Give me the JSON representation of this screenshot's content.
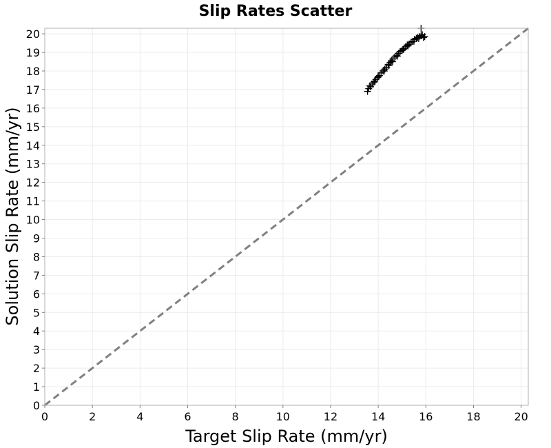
{
  "chart_data": {
    "type": "scatter",
    "title": "Slip Rates Scatter",
    "xlabel": "Target Slip Rate (mm/yr)",
    "ylabel": "Solution Slip Rate (mm/yr)",
    "xlim": [
      0,
      20.3
    ],
    "ylim": [
      0,
      20.3
    ],
    "xticks": [
      0,
      2,
      4,
      6,
      8,
      10,
      12,
      14,
      16,
      18,
      20
    ],
    "yticks": [
      0,
      1,
      2,
      3,
      4,
      5,
      6,
      7,
      8,
      9,
      10,
      11,
      12,
      13,
      14,
      15,
      16,
      17,
      18,
      19,
      20
    ],
    "grid": true,
    "marker": "plus",
    "marker_color": "#000000",
    "reference_line": {
      "from": [
        0,
        0
      ],
      "to": [
        20.3,
        20.3
      ],
      "style": "dashed",
      "color": "#808080"
    },
    "series": [
      {
        "x": [
          13.55,
          13.6,
          13.68,
          13.75,
          13.82,
          13.9,
          13.98,
          14.05,
          14.12,
          14.2,
          14.28,
          14.35,
          14.42,
          14.5,
          14.55,
          14.62,
          14.7,
          14.78,
          14.85,
          14.92,
          15.0,
          15.08,
          15.15,
          15.22,
          15.3,
          15.38,
          15.45,
          15.52,
          15.6,
          15.65,
          15.72,
          15.8,
          15.85,
          15.9,
          15.95,
          13.65,
          13.85,
          14.0,
          14.25,
          14.45,
          14.6,
          14.8,
          15.05,
          15.25,
          15.5,
          15.7,
          15.8
        ],
        "y": [
          16.9,
          17.05,
          17.15,
          17.3,
          17.4,
          17.55,
          17.65,
          17.75,
          17.9,
          18.0,
          18.1,
          18.2,
          18.35,
          18.45,
          18.55,
          18.65,
          18.75,
          18.85,
          18.95,
          19.05,
          19.1,
          19.2,
          19.3,
          19.4,
          19.45,
          19.55,
          19.6,
          19.7,
          19.75,
          19.8,
          19.85,
          19.9,
          19.95,
          19.8,
          19.85,
          17.2,
          17.45,
          17.7,
          18.0,
          18.3,
          18.5,
          18.8,
          19.15,
          19.35,
          19.6,
          19.75,
          20.3
        ]
      }
    ]
  }
}
